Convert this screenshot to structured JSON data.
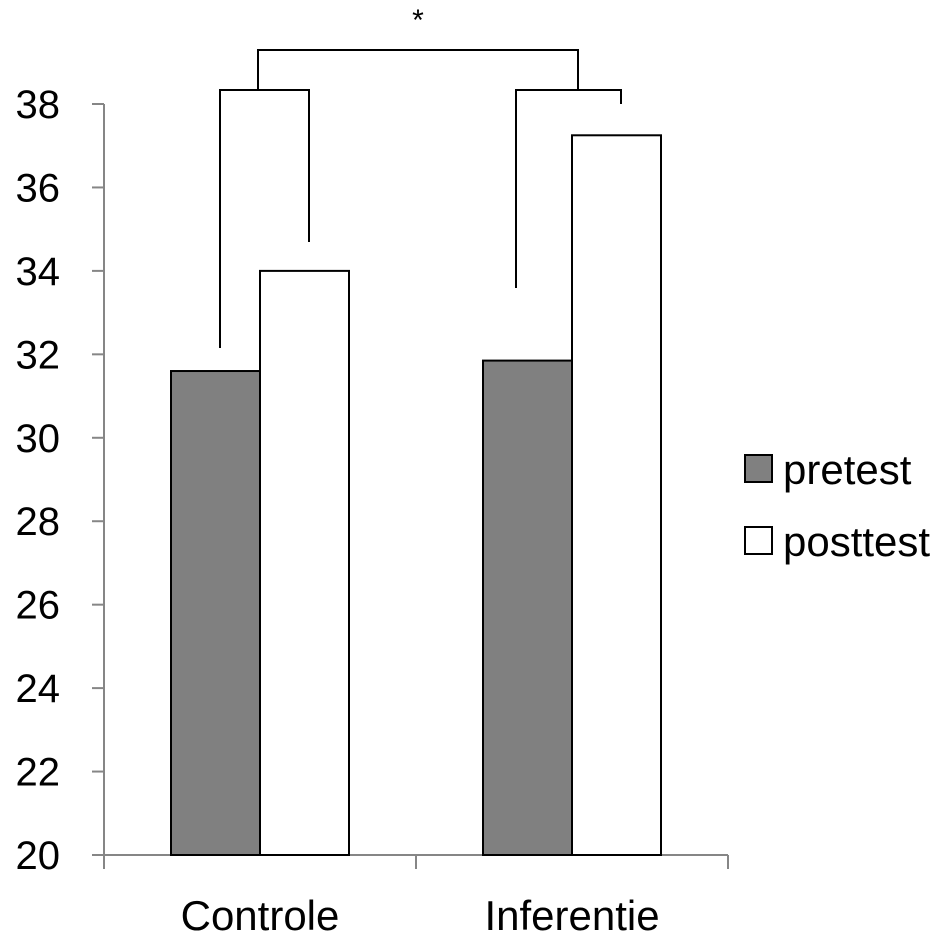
{
  "chart_data": {
    "type": "bar",
    "title": "",
    "xlabel": "",
    "ylabel": "",
    "ylim": [
      20,
      38
    ],
    "yticks": [
      20,
      22,
      24,
      26,
      28,
      30,
      32,
      34,
      36,
      38
    ],
    "grid": false,
    "legend_position": "right",
    "categories": [
      "Controle",
      "Inferentie"
    ],
    "series": [
      {
        "name": "pretest",
        "values": [
          31.6,
          31.85
        ],
        "color": "#808080"
      },
      {
        "name": "posttest",
        "values": [
          34.0,
          37.25
        ],
        "color": "#ffffff"
      }
    ],
    "annotations": [
      {
        "type": "bracket",
        "between": "pretest-posttest",
        "category": "Controle"
      },
      {
        "type": "bracket",
        "between": "pretest-posttest",
        "category": "Inferentie"
      },
      {
        "type": "bracket",
        "between": "Controle-Inferentie",
        "label": "*"
      }
    ]
  }
}
